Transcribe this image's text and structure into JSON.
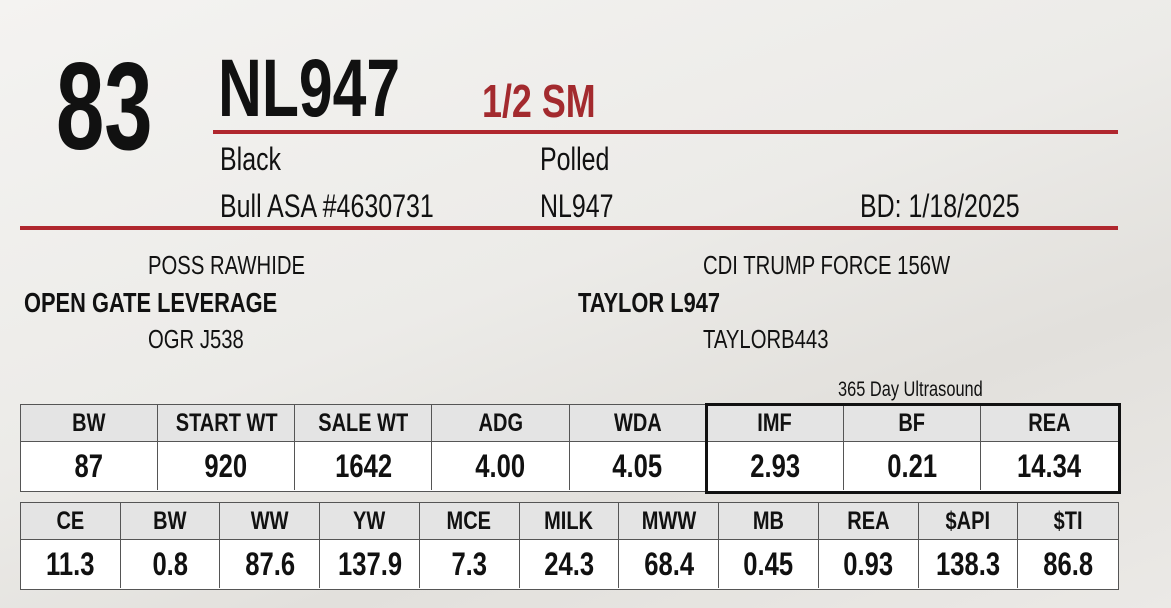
{
  "lot": "83",
  "name": "NL947",
  "breed": "1/2 SM",
  "details": {
    "color": "Black",
    "horn_status": "Polled",
    "registration": "Bull ASA #4630731",
    "tattoo": "NL947",
    "birth_date": "BD: 1/18/2025"
  },
  "pedigree": {
    "sire": {
      "sire": "POSS RAWHIDE",
      "name": "OPEN GATE LEVERAGE",
      "dam": "OGR J538"
    },
    "dam": {
      "sire": "CDI TRUMP FORCE 156W",
      "name": "TAYLOR L947",
      "dam": "TAYLORB443"
    }
  },
  "ultrasound_label": "365 Day Ultrasound",
  "performance": {
    "headers": [
      "BW",
      "START WT",
      "SALE WT",
      "ADG",
      "WDA",
      "IMF",
      "BF",
      "REA"
    ],
    "values": [
      "87",
      "920",
      "1642",
      "4.00",
      "4.05",
      "2.93",
      "0.21",
      "14.34"
    ]
  },
  "epds": {
    "headers": [
      "CE",
      "BW",
      "WW",
      "YW",
      "MCE",
      "MILK",
      "MWW",
      "MB",
      "REA",
      "$API",
      "$TI"
    ],
    "values": [
      "11.3",
      "0.8",
      "87.6",
      "137.9",
      "7.3",
      "24.3",
      "68.4",
      "0.45",
      "0.93",
      "138.3",
      "86.8"
    ]
  }
}
